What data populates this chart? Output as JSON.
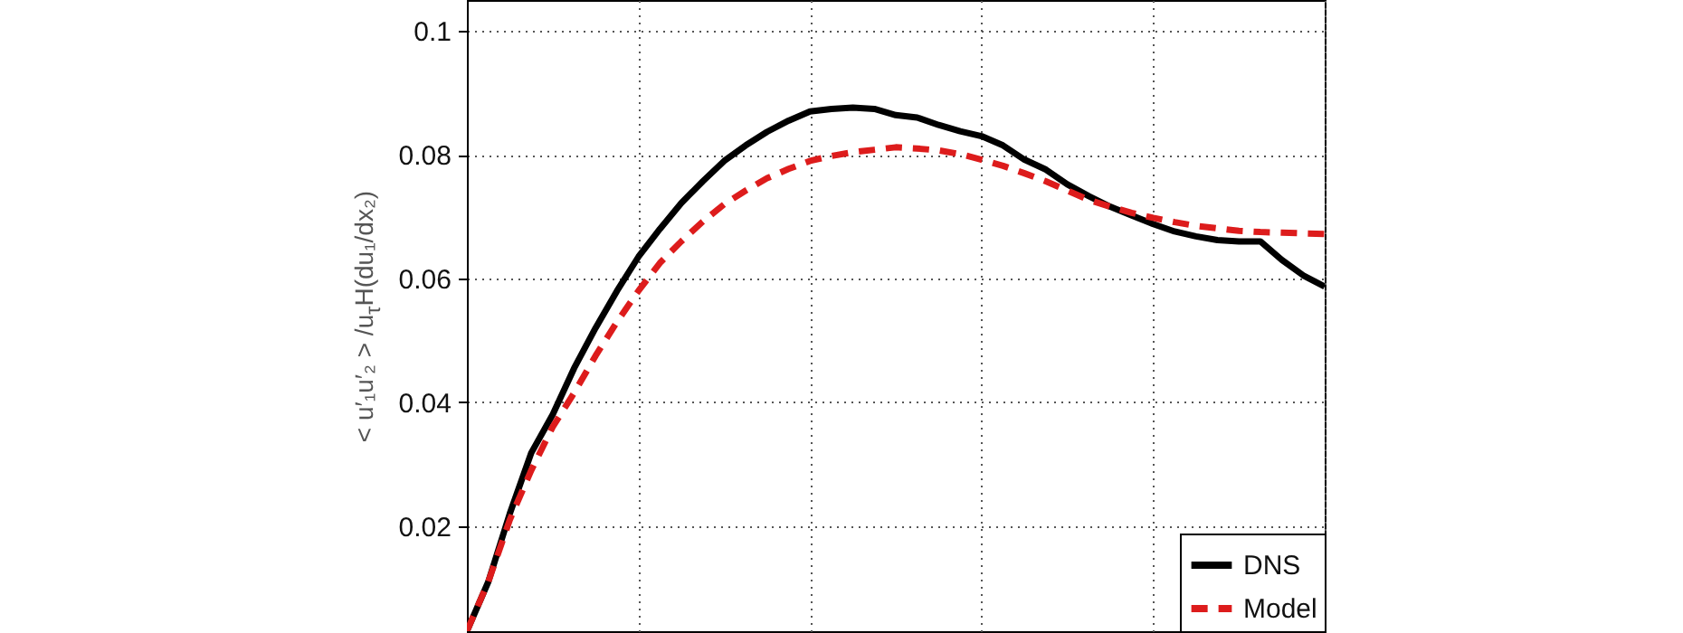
{
  "chart_data": {
    "type": "line",
    "ylabel": "< u′₁u′₂ > /u$_{τ}$H(du₁/dx₂)",
    "categories": [
      null,
      null,
      null,
      null,
      null,
      null,
      null,
      null,
      null,
      null,
      null,
      null,
      null,
      null,
      null,
      null,
      null,
      null,
      null,
      null,
      null,
      null,
      null,
      null,
      null,
      null,
      null,
      null,
      null,
      null,
      null,
      null,
      null,
      null,
      null,
      null,
      null,
      null,
      null,
      null,
      null
    ],
    "ylim": [
      0.003,
      0.105
    ],
    "yticks": [
      0.02,
      0.04,
      0.06,
      0.08,
      0.1
    ],
    "grid": true,
    "legend": "bottom right",
    "series": [
      {
        "name": "DNS",
        "color": "#000000",
        "line_style": "solid",
        "values": [
          0.003,
          0.011,
          0.022,
          0.0318,
          0.038,
          0.0455,
          0.052,
          0.058,
          0.0635,
          0.068,
          0.0722,
          0.0757,
          0.079,
          0.0815,
          0.0837,
          0.0855,
          0.087,
          0.0874,
          0.0876,
          0.0874,
          0.0864,
          0.086,
          0.0848,
          0.0838,
          0.083,
          0.0815,
          0.0792,
          0.0776,
          0.0752,
          0.0733,
          0.0716,
          0.0702,
          0.0688,
          0.0676,
          0.0668,
          0.0662,
          0.066,
          0.066,
          0.063,
          0.0605,
          0.0587
        ]
      },
      {
        "name": "Model",
        "color": "#dd1c1c",
        "line_style": "dashed",
        "values": [
          0.003,
          0.011,
          0.021,
          0.029,
          0.036,
          0.0415,
          0.0475,
          0.053,
          0.058,
          0.0625,
          0.066,
          0.0692,
          0.072,
          0.0742,
          0.0762,
          0.0777,
          0.079,
          0.0798,
          0.0804,
          0.0808,
          0.0812,
          0.081,
          0.0807,
          0.0801,
          0.0792,
          0.0782,
          0.077,
          0.0757,
          0.0742,
          0.0727,
          0.0716,
          0.0706,
          0.0698,
          0.0691,
          0.0685,
          0.0681,
          0.0677,
          0.0675,
          0.0674,
          0.0673,
          0.0672
        ]
      }
    ]
  }
}
